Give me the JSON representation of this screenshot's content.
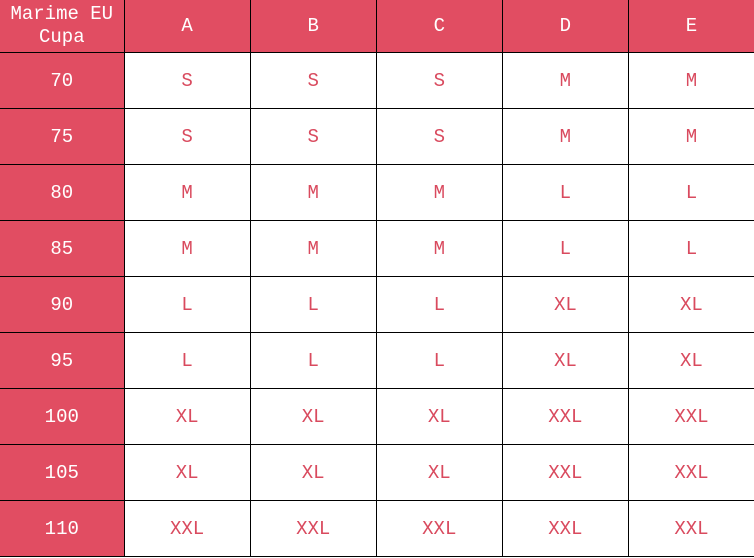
{
  "header": {
    "corner": "Marime EU Cupa",
    "cups": [
      "A",
      "B",
      "C",
      "D",
      "E"
    ]
  },
  "rows": [
    {
      "band": "70",
      "sizes": [
        "S",
        "S",
        "S",
        "M",
        "M"
      ]
    },
    {
      "band": "75",
      "sizes": [
        "S",
        "S",
        "S",
        "M",
        "M"
      ]
    },
    {
      "band": "80",
      "sizes": [
        "M",
        "M",
        "M",
        "L",
        "L"
      ]
    },
    {
      "band": "85",
      "sizes": [
        "M",
        "M",
        "M",
        "L",
        "L"
      ]
    },
    {
      "band": "90",
      "sizes": [
        "L",
        "L",
        "L",
        "XL",
        "XL"
      ]
    },
    {
      "band": "95",
      "sizes": [
        "L",
        "L",
        "L",
        "XL",
        "XL"
      ]
    },
    {
      "band": "100",
      "sizes": [
        "XL",
        "XL",
        "XL",
        "XXL",
        "XXL"
      ]
    },
    {
      "band": "105",
      "sizes": [
        "XL",
        "XL",
        "XL",
        "XXL",
        "XXL"
      ]
    },
    {
      "band": "110",
      "sizes": [
        "XXL",
        "XXL",
        "XXL",
        "XXL",
        "XXL"
      ]
    }
  ],
  "colors": {
    "header_bg": "#e14d62",
    "cell_text": "#d94a5e"
  }
}
